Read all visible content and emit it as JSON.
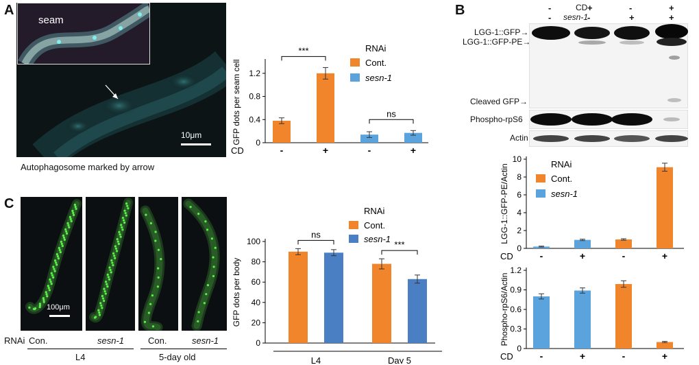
{
  "panels": {
    "a": "A",
    "b": "B",
    "c": "C"
  },
  "panel_a": {
    "inset_label": "seam",
    "scale_bar": "10μm",
    "caption": "Autophagosome marked by arrow"
  },
  "panel_c": {
    "scale_bar": "100μm",
    "rnai_label": "RNAi",
    "worm_labels": [
      "Con.",
      "sesn-1",
      "Con.",
      "sesn-1"
    ],
    "group_labels": [
      "L4",
      "5-day old"
    ]
  },
  "panel_b_blot": {
    "cd_label": "CD",
    "sesn_label": "sesn-1",
    "cd_signs": [
      "-",
      "+",
      "-",
      "+"
    ],
    "sesn_signs": [
      "-",
      "-",
      "+",
      "+"
    ],
    "band_labels": [
      "LGG-1::GFP",
      "LGG-1::GFP-PE",
      "Cleaved GFP",
      "Phospho-rpS6",
      "Actin"
    ]
  },
  "colors": {
    "control": "#f0852c",
    "sesn1_light": "#5aa3dc",
    "sesn1_dark": "#4b7fc4",
    "gfp": "#5cf04a"
  },
  "chart_data": [
    {
      "id": "A_bar",
      "type": "bar",
      "ylabel": "GFP dots per seam cell",
      "ylim": [
        0,
        1.4
      ],
      "yticks": [
        0,
        0.4,
        0.8,
        1.2
      ],
      "xrow_label": "CD",
      "categories": [
        "-",
        "+",
        "-",
        "+"
      ],
      "values": [
        0.38,
        1.2,
        0.14,
        0.17
      ],
      "errors": [
        0.05,
        0.1,
        0.05,
        0.04
      ],
      "bar_series": [
        "Cont.",
        "Cont.",
        "sesn-1",
        "sesn-1"
      ],
      "legend_title": "RNAi",
      "legend": [
        "Cont.",
        "sesn-1"
      ],
      "significance": [
        {
          "pair": [
            0,
            1
          ],
          "label": "***"
        },
        {
          "pair": [
            2,
            3
          ],
          "label": "ns"
        }
      ]
    },
    {
      "id": "C_bar",
      "type": "bar",
      "ylabel": "GFP dots per  body",
      "ylim": [
        0,
        100
      ],
      "yticks": [
        0,
        20,
        40,
        60,
        80,
        100
      ],
      "categories": [
        "L4",
        "Day 5"
      ],
      "series": [
        {
          "name": "Cont.",
          "values": [
            90,
            78
          ],
          "errors": [
            3,
            5
          ]
        },
        {
          "name": "sesn-1",
          "values": [
            89,
            63
          ],
          "errors": [
            3,
            4
          ]
        }
      ],
      "legend_title": "RNAi",
      "significance": [
        {
          "group": 0,
          "label": "ns"
        },
        {
          "group": 1,
          "label": "***"
        }
      ]
    },
    {
      "id": "B_bar1",
      "type": "bar",
      "ylabel": "LGG-1::GFP-PE/Actin",
      "ylim": [
        0,
        10
      ],
      "yticks": [
        0,
        2,
        4,
        6,
        8,
        10
      ],
      "xrow_label": "CD",
      "categories": [
        "-",
        "+",
        "-",
        "+"
      ],
      "values": [
        0.2,
        0.95,
        1.0,
        9.1
      ],
      "errors": [
        0.05,
        0.08,
        0.08,
        0.45
      ],
      "bar_series": [
        "sesn-1",
        "sesn-1",
        "Cont.",
        "Cont."
      ],
      "legend_title": "RNAi",
      "legend": [
        "Cont.",
        "sesn-1"
      ]
    },
    {
      "id": "B_bar2",
      "type": "bar",
      "ylabel": "Phospho-rpS6/Actin",
      "ylim": [
        0,
        1.2
      ],
      "yticks": [
        0,
        0.3,
        0.6,
        0.9,
        1.2
      ],
      "xrow_label": "CD",
      "categories": [
        "-",
        "+",
        "-",
        "+"
      ],
      "values": [
        0.8,
        0.89,
        0.99,
        0.1
      ],
      "errors": [
        0.04,
        0.04,
        0.05,
        0.01
      ],
      "bar_series": [
        "sesn-1",
        "sesn-1",
        "Cont.",
        "Cont."
      ]
    }
  ]
}
